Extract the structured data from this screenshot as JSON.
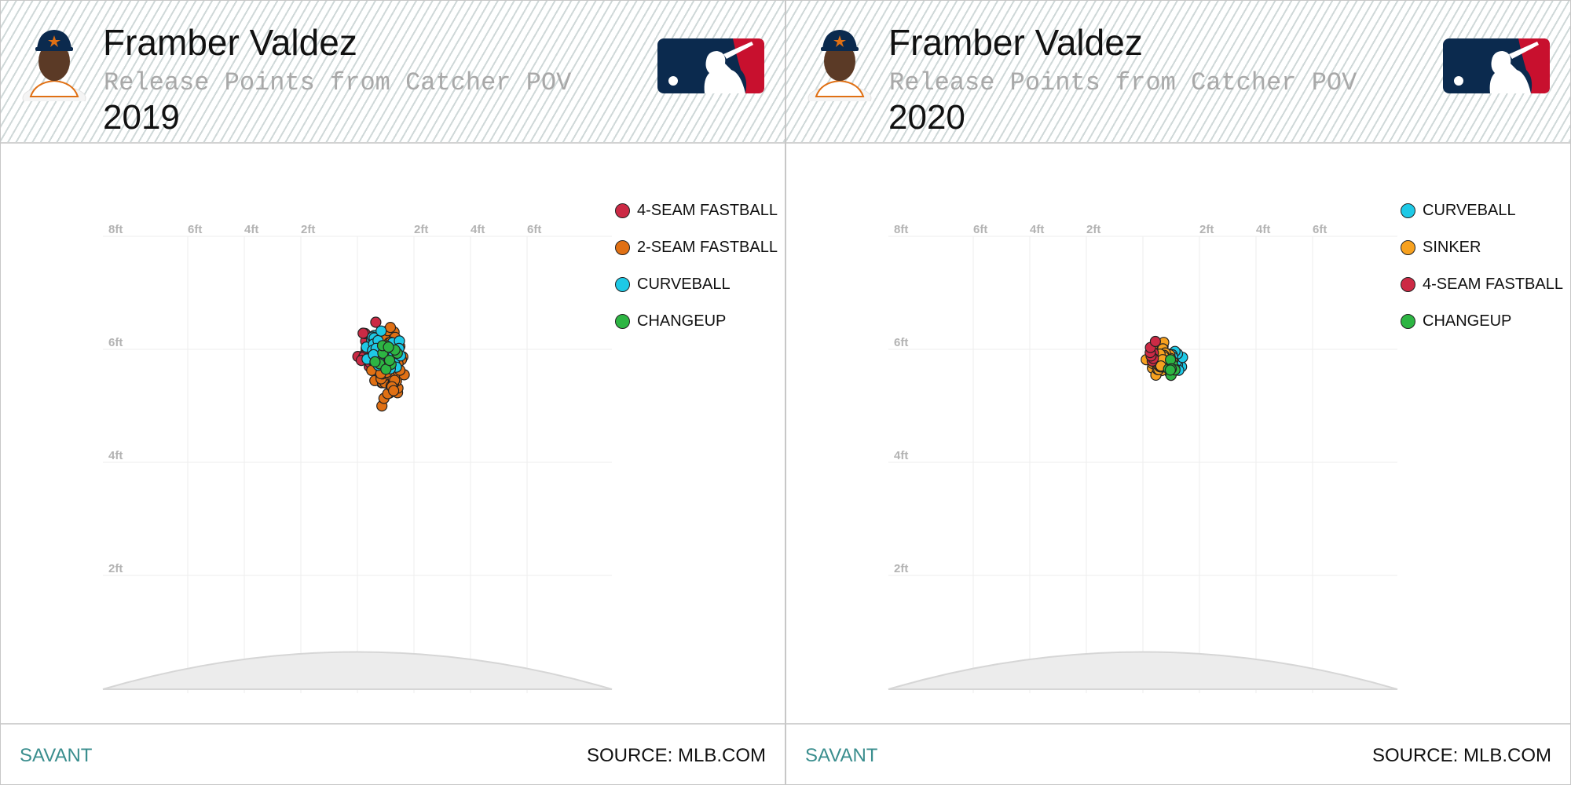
{
  "colors": {
    "four_seam": "#cc2a45",
    "two_seam": "#e07014",
    "curveball": "#1ec9e6",
    "changeup": "#2db543",
    "sinker": "#f7a11f",
    "savant": "#3a8e8e",
    "mlb_blue": "#0b2a4e",
    "mlb_red": "#c8102e"
  },
  "panels": [
    {
      "player": "Framber Valdez",
      "subtitle": "Release Points from Catcher POV",
      "season": "2019",
      "logo_icon": "mlb-logo-icon",
      "footer": {
        "left": "SAVANT",
        "right": "SOURCE: MLB.COM"
      },
      "legend": [
        {
          "label": "4-SEAM FASTBALL",
          "color": "#cc2a45"
        },
        {
          "label": "2-SEAM FASTBALL",
          "color": "#e07014"
        },
        {
          "label": "CURVEBALL",
          "color": "#1ec9e6"
        },
        {
          "label": "CHANGEUP",
          "color": "#2db543"
        }
      ]
    },
    {
      "player": "Framber Valdez",
      "subtitle": "Release Points from Catcher POV",
      "season": "2020",
      "logo_icon": "mlb-logo-icon",
      "footer": {
        "left": "SAVANT",
        "right": "SOURCE: MLB.COM"
      },
      "legend": [
        {
          "label": "CURVEBALL",
          "color": "#1ec9e6"
        },
        {
          "label": "SINKER",
          "color": "#f7a11f"
        },
        {
          "label": "4-SEAM FASTBALL",
          "color": "#cc2a45"
        },
        {
          "label": "CHANGEUP",
          "color": "#2db543"
        }
      ]
    }
  ],
  "chart_data": [
    {
      "type": "scatter",
      "title": "Framber Valdez",
      "subtitle": "Release Points from Catcher POV",
      "season": "2019",
      "x_ticks": [
        "8ft",
        "6ft",
        "4ft",
        "2ft",
        "2ft",
        "4ft",
        "6ft"
      ],
      "y_ticks": [
        "6ft",
        "4ft",
        "2ft"
      ],
      "xlim": [
        -9,
        9
      ],
      "ylim": [
        0,
        8.2
      ],
      "grid": true,
      "legend_position": "top-right",
      "series": [
        {
          "name": "4-SEAM FASTBALL",
          "color": "#cc2a45",
          "center": [
            0.6,
            6.0
          ],
          "spread": [
            0.42,
            0.32
          ],
          "count": 60,
          "seed": 11
        },
        {
          "name": "2-SEAM FASTBALL",
          "color": "#e07014",
          "center": [
            1.1,
            5.7
          ],
          "spread": [
            0.4,
            0.5
          ],
          "count": 80,
          "seed": 23
        },
        {
          "name": "CURVEBALL",
          "color": "#1ec9e6",
          "center": [
            0.9,
            5.95
          ],
          "spread": [
            0.5,
            0.28
          ],
          "count": 38,
          "seed": 37
        },
        {
          "name": "CHANGEUP",
          "color": "#2db543",
          "center": [
            1.0,
            5.9
          ],
          "spread": [
            0.45,
            0.3
          ],
          "count": 12,
          "seed": 41
        }
      ]
    },
    {
      "type": "scatter",
      "title": "Framber Valdez",
      "subtitle": "Release Points from Catcher POV",
      "season": "2020",
      "x_ticks": [
        "8ft",
        "6ft",
        "4ft",
        "2ft",
        "2ft",
        "4ft",
        "6ft"
      ],
      "y_ticks": [
        "6ft",
        "4ft",
        "2ft"
      ],
      "xlim": [
        -9,
        9
      ],
      "ylim": [
        0,
        8.2
      ],
      "grid": true,
      "legend_position": "top-right",
      "series": [
        {
          "name": "CURVEBALL",
          "color": "#1ec9e6",
          "center": [
            1.15,
            5.85
          ],
          "spread": [
            0.28,
            0.2
          ],
          "count": 22,
          "seed": 53
        },
        {
          "name": "SINKER",
          "color": "#f7a11f",
          "center": [
            0.65,
            5.8
          ],
          "spread": [
            0.33,
            0.23
          ],
          "count": 70,
          "seed": 67
        },
        {
          "name": "4-SEAM FASTBALL",
          "color": "#cc2a45",
          "center": [
            0.4,
            5.95
          ],
          "spread": [
            0.25,
            0.15
          ],
          "count": 8,
          "seed": 71
        },
        {
          "name": "CHANGEUP",
          "color": "#2db543",
          "center": [
            1.05,
            5.65
          ],
          "spread": [
            0.22,
            0.18
          ],
          "count": 10,
          "seed": 83
        }
      ]
    }
  ]
}
